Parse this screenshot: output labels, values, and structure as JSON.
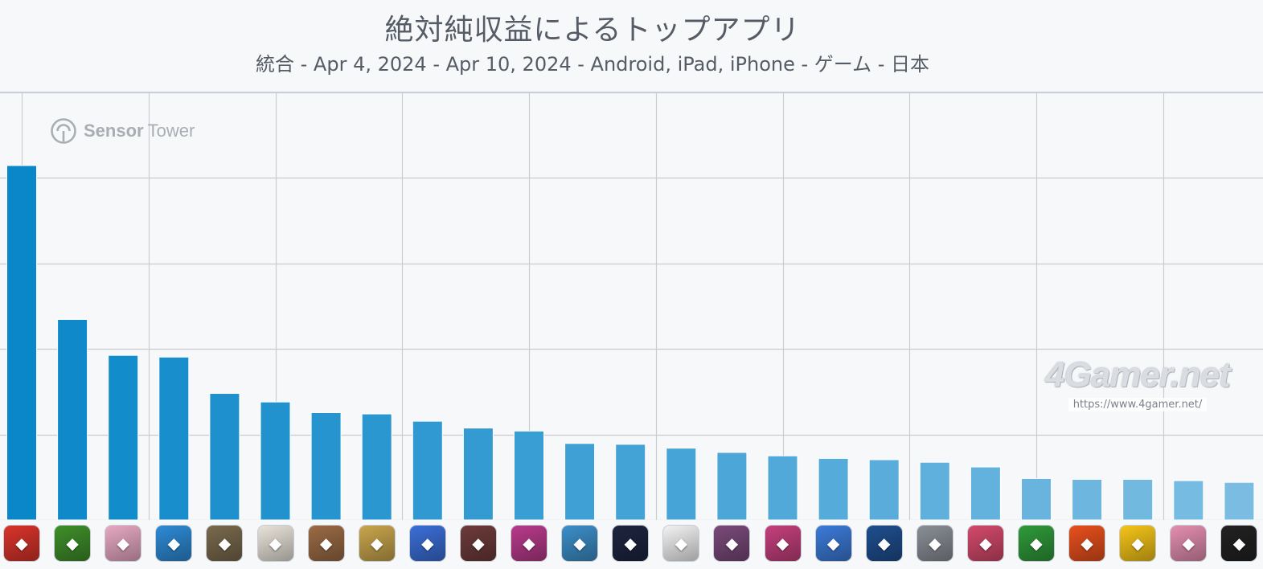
{
  "title": "絶対純収益によるトップアプリ",
  "subtitle": "統合 - Apr 4, 2024 - Apr 10, 2024 - Android, iPad, iPhone - ゲーム - 日本",
  "logo": {
    "brand_strong": "Sensor",
    "brand_light": "Tower"
  },
  "watermark": {
    "main": "4Gamer.net",
    "url": "https://www.4gamer.net/"
  },
  "colors": {
    "bar_top": "#0a87c9",
    "bar_bottom": "#7bbde2",
    "grid": "#c9ccd1",
    "background": "#f7f8fa"
  },
  "chart_data": {
    "type": "bar",
    "grid": true,
    "y_gridlines": 5,
    "ylim": [
      0,
      100
    ],
    "values": [
      82.9,
      46.9,
      38.5,
      38.1,
      29.6,
      27.6,
      25.1,
      24.8,
      23.1,
      21.5,
      20.8,
      17.9,
      17.7,
      16.8,
      15.8,
      15.0,
      14.4,
      14.1,
      13.5,
      12.4,
      9.7,
      9.5,
      9.5,
      9.2,
      8.8
    ],
    "app_icons": [
      "red-monster-icon",
      "legend-of-mushroom-icon",
      "hoyoverse-pink-hair-icon",
      "monster-4.5-anniv-icon",
      "pubg-helmet-icon",
      "hoyoverse-chibi-icon",
      "fantasy-hero-icon",
      "fate-blonde-knight-icon",
      "royal-match-king-icon",
      "dark-hair-girl-icon",
      "puzzle-dragons-12th-anniv-icon",
      "blue-hair-idol-icon",
      "soccer-players-icon",
      "pokemon-ball-icon",
      "disney-tsum-icon",
      "uma-musume-icon",
      "math-x6-penguin-icon",
      "blue-planet-icon",
      "armored-knight-icon",
      "red-hair-music-icon",
      "golf-course-icon",
      "red-bear-icon",
      "brawl-stars-icon",
      "pink-bunny-line-icon",
      "now-badge-icon"
    ]
  }
}
